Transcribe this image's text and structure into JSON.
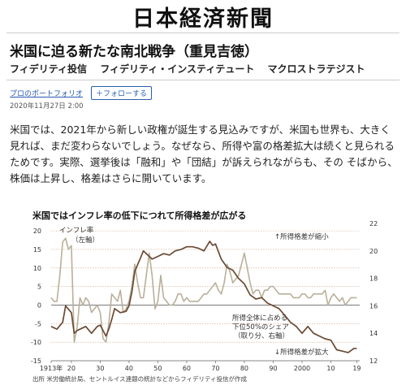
{
  "masthead": "日本経済新聞",
  "article": {
    "title": "米国に迫る新たな南北戦争（重見吉徳）",
    "byline": [
      "フィデリティ投信",
      "フィデリティ・インスティテュート",
      "マクロストラテジスト"
    ],
    "portfolio_link": "プロのポートフォリオ",
    "follow_button": "＋フォローする",
    "date": "2020年11月27日 2:00",
    "body": "米国では、2021年から新しい政権が誕生する見込みですが、米国も世界も、大きく見れば、まだ変わらないでしょう。なぜなら、所得や富の格差拡大は続くと見られるためです。実際、選挙後は「融和」や「団結」が訴えられながらも、その そばから、株価は上昇し、格差はさらに開いています。"
  },
  "chart": {
    "title": "米国ではインフレ率の低下につれて所得格差が広がる",
    "source": "出所 米労働統計局、セントルイス連銀の統計などからフィデリティ投信が作成",
    "annotations": {
      "inflation": [
        "インフレ率",
        "（左軸）"
      ],
      "shrink": "↑所得格差が縮小",
      "expand": "↓所得格差が拡大",
      "share": [
        "所得全体に占める",
        "下位50%のシェア",
        "（取り分、右軸）"
      ]
    },
    "colors": {
      "inflation": "#b9b09a",
      "share": "#6b4a33",
      "grid": "#c9a98c"
    }
  },
  "chart_data": {
    "type": "line",
    "title": "米国ではインフレ率の低下につれて所得格差が広がる",
    "x_tick_labels": [
      "1913年",
      "20",
      "30",
      "40",
      "50",
      "60",
      "70",
      "80",
      "90",
      "2000",
      "10",
      "19"
    ],
    "xlim": [
      1913,
      2020
    ],
    "left_axis": {
      "ylim": [
        -15,
        22
      ],
      "ticks": [
        "-15",
        "-10",
        "-5",
        "0",
        "5",
        "10",
        "15",
        "20"
      ]
    },
    "right_axis": {
      "ylim": [
        12,
        22
      ],
      "ticks": [
        "12",
        "14",
        "16",
        "18",
        "20",
        "22"
      ]
    },
    "series": [
      {
        "name": "インフレ率",
        "axis": "left",
        "x": [
          1913,
          1914,
          1915,
          1916,
          1917,
          1918,
          1919,
          1920,
          1921,
          1922,
          1923,
          1924,
          1925,
          1926,
          1927,
          1928,
          1929,
          1930,
          1931,
          1932,
          1933,
          1934,
          1935,
          1936,
          1937,
          1938,
          1939,
          1940,
          1941,
          1942,
          1943,
          1944,
          1945,
          1946,
          1947,
          1948,
          1949,
          1950,
          1951,
          1952,
          1953,
          1954,
          1955,
          1956,
          1957,
          1958,
          1959,
          1960,
          1961,
          1962,
          1963,
          1964,
          1965,
          1966,
          1967,
          1968,
          1969,
          1970,
          1971,
          1972,
          1973,
          1974,
          1975,
          1976,
          1977,
          1978,
          1979,
          1980,
          1981,
          1982,
          1983,
          1984,
          1985,
          1986,
          1987,
          1988,
          1989,
          1990,
          1991,
          1992,
          1993,
          1994,
          1995,
          1996,
          1997,
          1998,
          1999,
          2000,
          2001,
          2002,
          2003,
          2004,
          2005,
          2006,
          2007,
          2008,
          2009,
          2010,
          2011,
          2012,
          2013,
          2014,
          2015,
          2016,
          2017,
          2018,
          2019
        ],
        "values": [
          2,
          1,
          1,
          8,
          17,
          18,
          15,
          16,
          -10,
          -6,
          2,
          0,
          2,
          1,
          -2,
          -1,
          0,
          -2,
          -9,
          -10,
          -5,
          3,
          2,
          1,
          4,
          -2,
          -1,
          1,
          5,
          11,
          6,
          2,
          2,
          8,
          14,
          8,
          -1,
          1,
          8,
          2,
          1,
          0,
          0,
          1,
          3,
          3,
          1,
          2,
          1,
          1,
          1,
          1,
          2,
          3,
          3,
          4,
          5,
          6,
          4,
          3,
          6,
          11,
          9,
          6,
          7,
          8,
          11,
          14,
          10,
          6,
          3,
          4,
          4,
          2,
          4,
          4,
          5,
          5,
          4,
          3,
          3,
          3,
          3,
          3,
          2,
          2,
          2,
          3,
          3,
          2,
          2,
          3,
          3,
          3,
          3,
          4,
          0,
          2,
          3,
          2,
          1,
          2,
          0,
          1,
          2,
          2,
          2
        ]
      },
      {
        "name": "所得全体に占める下位50%のシェア",
        "axis": "right",
        "x": [
          1913,
          1915,
          1917,
          1918,
          1920,
          1921,
          1922,
          1925,
          1927,
          1929,
          1930,
          1932,
          1933,
          1934,
          1935,
          1937,
          1939,
          1940,
          1941,
          1942,
          1943,
          1944,
          1945,
          1946,
          1948,
          1950,
          1952,
          1954,
          1956,
          1958,
          1960,
          1962,
          1964,
          1966,
          1968,
          1969,
          1970,
          1972,
          1974,
          1976,
          1978,
          1980,
          1982,
          1984,
          1986,
          1988,
          1990,
          1992,
          1994,
          1996,
          1998,
          2000,
          2002,
          2004,
          2006,
          2008,
          2010,
          2012,
          2014,
          2016,
          2018,
          2019
        ],
        "values": [
          14.5,
          14.3,
          14.8,
          16.0,
          15.5,
          14.0,
          14.2,
          14.5,
          14.0,
          14.5,
          14.6,
          13.8,
          14.3,
          15.0,
          15.8,
          15.5,
          15.6,
          16.0,
          17.0,
          18.5,
          19.0,
          19.5,
          20.0,
          19.8,
          19.4,
          19.6,
          19.8,
          19.7,
          20.0,
          20.1,
          20.3,
          20.3,
          20.2,
          20.0,
          20.7,
          20.4,
          20.5,
          19.4,
          18.8,
          18.6,
          18.0,
          17.6,
          16.8,
          16.5,
          16.6,
          16.2,
          16.0,
          15.8,
          15.3,
          14.8,
          14.5,
          14.0,
          14.5,
          14.0,
          13.8,
          13.6,
          13.5,
          12.8,
          12.7,
          12.6,
          12.9,
          12.9
        ]
      }
    ],
    "grid": true
  }
}
